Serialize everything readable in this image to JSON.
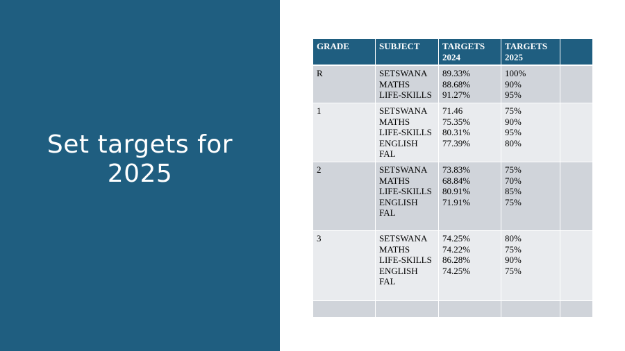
{
  "slide": {
    "title": "Set targets for\n2025",
    "colors": {
      "panel": "#1f5e80",
      "header": "#1f5e80",
      "row_dark": "#d0d4da",
      "row_light": "#e9ebee"
    }
  },
  "table": {
    "headers": [
      "GRADE",
      "SUBJECT",
      "TARGETS\n2024",
      "TARGETS\n2025",
      ""
    ],
    "rows": [
      {
        "grade": "R",
        "subjects": "SETSWANA\nMATHS\nLIFE-SKILLS",
        "targets_2024": "89.33%\n88.68%\n91.27%",
        "targets_2025": "100%\n90%\n95%"
      },
      {
        "grade": "1",
        "subjects": "SETSWANA\nMATHS\nLIFE-SKILLS\nENGLISH\nFAL",
        "targets_2024": "71.46\n75.35%\n80.31%\n77.39%",
        "targets_2025": "75%\n90%\n95%\n80%"
      },
      {
        "grade": "2",
        "subjects": "SETSWANA\nMATHS\nLIFE-SKILLS\nENGLISH\nFAL",
        "targets_2024": "73.83%\n68.84%\n80.91%\n71.91%",
        "targets_2025": "75%\n70%\n85%\n75%"
      },
      {
        "grade": "3",
        "subjects": "SETSWANA\nMATHS\nLIFE-SKILLS\nENGLISH\nFAL",
        "targets_2024": "74.25%\n74.22%\n86.28%\n74.25%",
        "targets_2025": "80%\n75%\n90%\n75%"
      }
    ]
  }
}
